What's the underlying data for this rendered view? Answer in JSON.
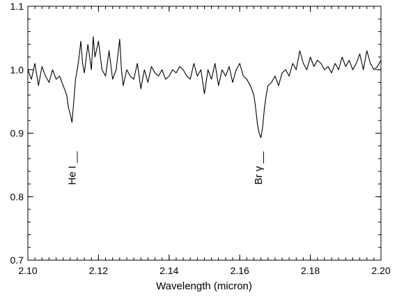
{
  "chart_data": {
    "type": "line",
    "title": "",
    "xlabel": "Wavelength (micron)",
    "ylabel": "",
    "xlim": [
      2.1,
      2.2
    ],
    "ylim": [
      0.7,
      1.1
    ],
    "x_ticks": [
      "2.10",
      "2.12",
      "2.14",
      "2.16",
      "2.18",
      "2.20"
    ],
    "y_ticks": [
      "0.7",
      "0.8",
      "0.9",
      "1.0",
      "1.1"
    ],
    "grid": false,
    "legend": "none",
    "annotations": [
      {
        "text": "He I",
        "x": 2.1125,
        "y": 0.845
      },
      {
        "text": "Br γ",
        "x": 2.1653,
        "y": 0.845
      }
    ],
    "series": [
      {
        "color": "#000000",
        "x": [
          2.1,
          2.101,
          2.102,
          2.103,
          2.104,
          2.105,
          2.106,
          2.107,
          2.108,
          2.109,
          2.11,
          2.111,
          2.1115,
          2.112,
          2.1125,
          2.113,
          2.1135,
          2.114,
          2.1145,
          2.115,
          2.1155,
          2.116,
          2.117,
          2.118,
          2.1185,
          2.119,
          2.12,
          2.121,
          2.122,
          2.123,
          2.124,
          2.125,
          2.126,
          2.1265,
          2.127,
          2.128,
          2.129,
          2.13,
          2.131,
          2.132,
          2.133,
          2.134,
          2.135,
          2.136,
          2.137,
          2.138,
          2.139,
          2.14,
          2.141,
          2.142,
          2.143,
          2.144,
          2.145,
          2.146,
          2.147,
          2.148,
          2.149,
          2.15,
          2.151,
          2.152,
          2.153,
          2.154,
          2.155,
          2.156,
          2.157,
          2.158,
          2.159,
          2.16,
          2.161,
          2.162,
          2.163,
          2.164,
          2.1645,
          2.165,
          2.1655,
          2.166,
          2.1665,
          2.167,
          2.1675,
          2.168,
          2.169,
          2.17,
          2.171,
          2.172,
          2.173,
          2.174,
          2.175,
          2.176,
          2.177,
          2.178,
          2.179,
          2.18,
          2.181,
          2.182,
          2.183,
          2.184,
          2.185,
          2.186,
          2.187,
          2.188,
          2.189,
          2.19,
          2.191,
          2.192,
          2.193,
          2.194,
          2.195,
          2.196,
          2.197,
          2.198,
          2.199,
          2.2
        ],
        "y": [
          1.0,
          0.985,
          1.01,
          0.975,
          1.005,
          0.99,
          0.98,
          1.0,
          0.985,
          0.99,
          0.975,
          0.96,
          0.94,
          0.93,
          0.917,
          0.95,
          0.985,
          1.0,
          1.02,
          1.045,
          1.01,
          0.995,
          1.04,
          1.0,
          1.052,
          1.02,
          1.045,
          1.0,
          0.99,
          1.03,
          0.985,
          1.0,
          1.048,
          1.0,
          0.975,
          1.0,
          0.99,
          0.985,
          1.01,
          0.97,
          1.0,
          0.98,
          1.005,
          0.995,
          0.99,
          1.0,
          0.985,
          0.99,
          1.0,
          0.995,
          1.005,
          1.0,
          0.99,
          0.985,
          1.01,
          0.99,
          1.0,
          0.962,
          1.0,
          0.985,
          1.01,
          0.975,
          1.0,
          0.99,
          1.005,
          0.98,
          1.0,
          1.01,
          0.99,
          0.985,
          0.975,
          0.96,
          0.94,
          0.915,
          0.9,
          0.893,
          0.91,
          0.94,
          0.96,
          0.975,
          0.98,
          0.99,
          0.975,
          0.995,
          1.0,
          0.99,
          1.01,
          1.0,
          1.03,
          1.01,
          1.0,
          1.02,
          1.005,
          1.015,
          1.01,
          1.0,
          1.005,
          0.995,
          1.01,
          1.0,
          1.02,
          1.005,
          1.015,
          1.0,
          1.01,
          1.025,
          1.0,
          1.03,
          1.01,
          1.0,
          1.005,
          1.015
        ]
      }
    ]
  }
}
